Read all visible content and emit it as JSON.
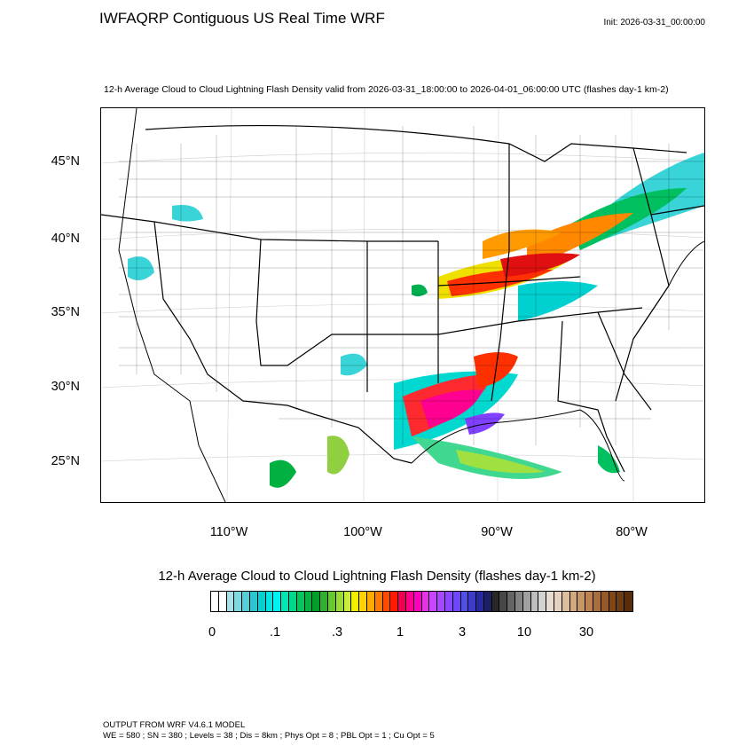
{
  "title": "IWFAQRP Contiguous US Real Time WRF",
  "init": "Init: 2026-03-31_00:00:00",
  "subtitle": "12-h Average Cloud to Cloud Lightning Flash Density valid from 2026-03-31_18:00:00 to 2026-04-01_06:00:00 UTC   (flashes day-1 km-2)",
  "lat_labels": [
    "45°N",
    "40°N",
    "35°N",
    "30°N",
    "25°N"
  ],
  "lon_labels": [
    "110°W",
    "100°W",
    "90°W",
    "80°W"
  ],
  "colorbar": {
    "title": "12-h Average Cloud to Cloud Lightning Flash Density  (flashes day-1 km-2)",
    "tick_labels": [
      "0",
      ".1",
      ".3",
      "1",
      "3",
      "10",
      "30"
    ],
    "colors": [
      "#ffffff",
      "#ffffff",
      "#a8e2e8",
      "#7fd8e0",
      "#55ccd8",
      "#2ec4d2",
      "#00d2d2",
      "#00e6e6",
      "#00f2f2",
      "#00e6b4",
      "#00d890",
      "#00c85a",
      "#00b43c",
      "#00a028",
      "#2fb02f",
      "#66c833",
      "#99dc33",
      "#c8ee33",
      "#f0f000",
      "#ffd200",
      "#ffaa00",
      "#ff7a00",
      "#ff4a00",
      "#ff1a00",
      "#f00050",
      "#ff0090",
      "#ff00c0",
      "#e632e6",
      "#c846ff",
      "#aa46ff",
      "#8c46ff",
      "#6e46ff",
      "#5050e6",
      "#3c3cc8",
      "#2828a0",
      "#1e1e64",
      "#282828",
      "#464646",
      "#646464",
      "#828282",
      "#a0a0a0",
      "#bebebe",
      "#d2d2d2",
      "#e6dcd2",
      "#e6d2be",
      "#dcbe9a",
      "#d2a87c",
      "#c89664",
      "#be8250",
      "#aa6e3c",
      "#965a28",
      "#824614",
      "#6e3c14",
      "#5a2d0a"
    ]
  },
  "footer": {
    "line1": "OUTPUT FROM WRF V4.6.1 MODEL",
    "line2": "WE = 580 ; SN = 380 ; Levels = 38 ; Dis = 8km ; Phys Opt = 8 ; PBL Opt = 1 ; Cu Opt = 5"
  }
}
